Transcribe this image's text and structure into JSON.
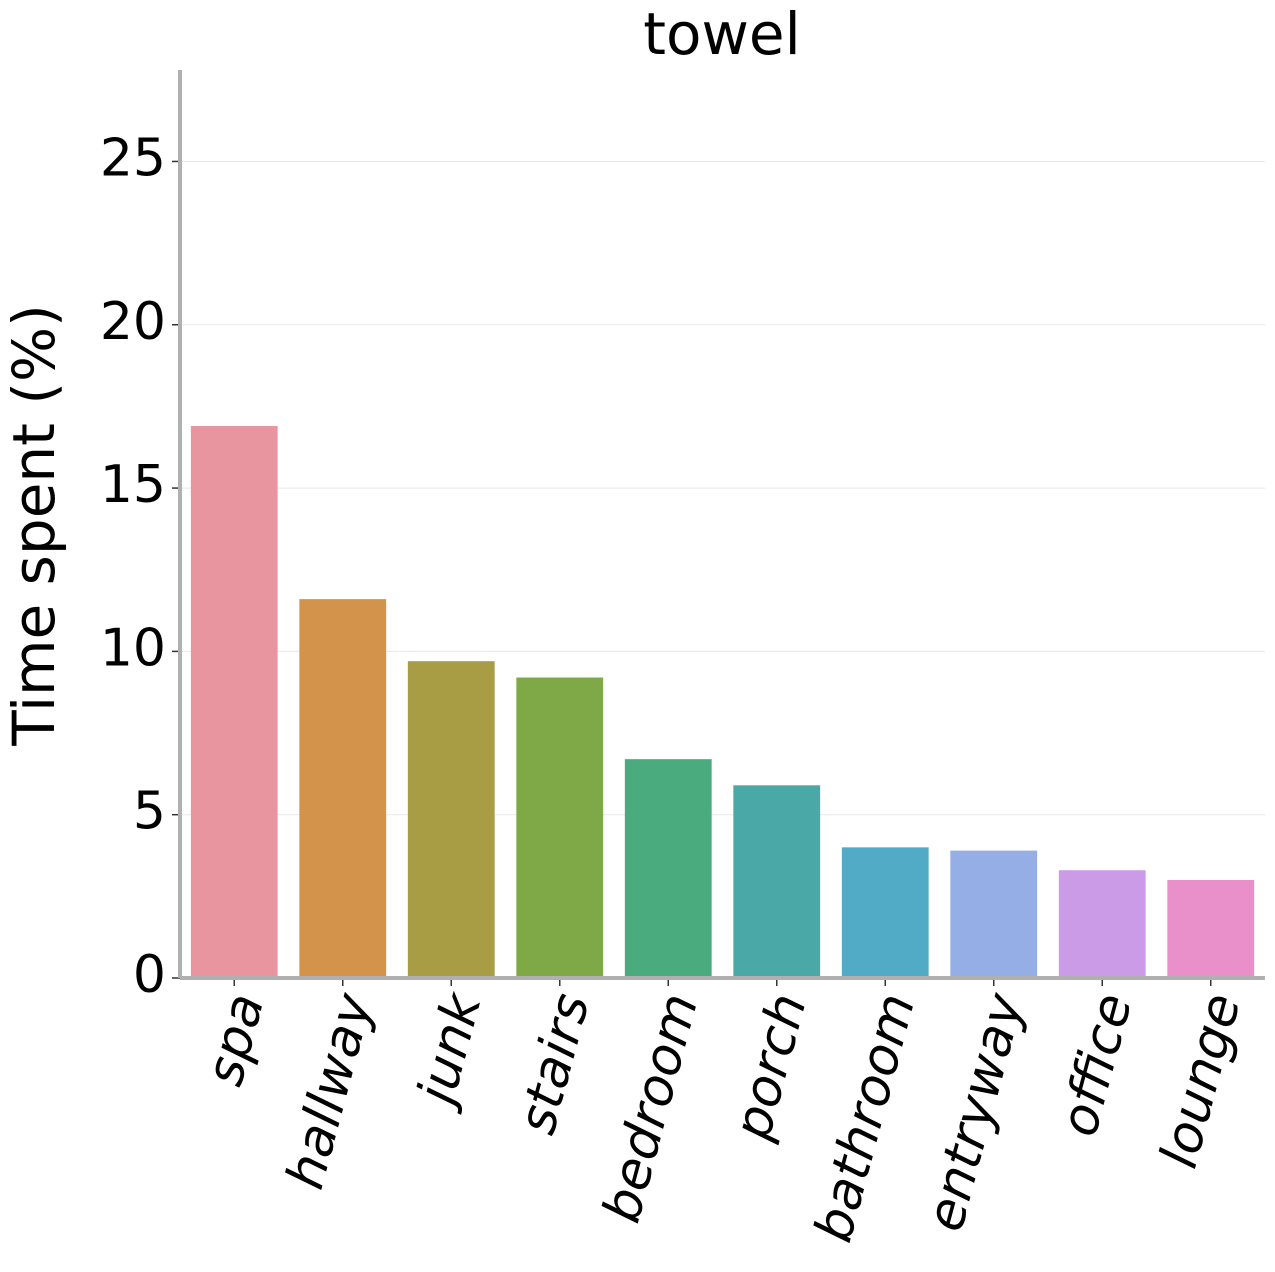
{
  "chart_data": {
    "type": "bar",
    "title": "towel",
    "y_label": "Time spent (%)",
    "categories": [
      "spa",
      "hallway",
      "junk",
      "stairs",
      "bedroom",
      "porch",
      "bathroom",
      "entryway",
      "office",
      "lounge"
    ],
    "values": [
      16.9,
      11.6,
      9.7,
      9.2,
      6.7,
      5.9,
      4.0,
      3.9,
      3.3,
      3.0
    ],
    "colors": [
      "#e8959f",
      "#d4934b",
      "#a89c45",
      "#7fa846",
      "#4aab7e",
      "#4aa8a6",
      "#52abc6",
      "#95aee5",
      "#cc9be7",
      "#e98fc9"
    ],
    "ylim": [
      0,
      27.8
    ],
    "yticks": [
      0,
      5,
      10,
      15,
      20,
      25
    ],
    "grid": true
  }
}
